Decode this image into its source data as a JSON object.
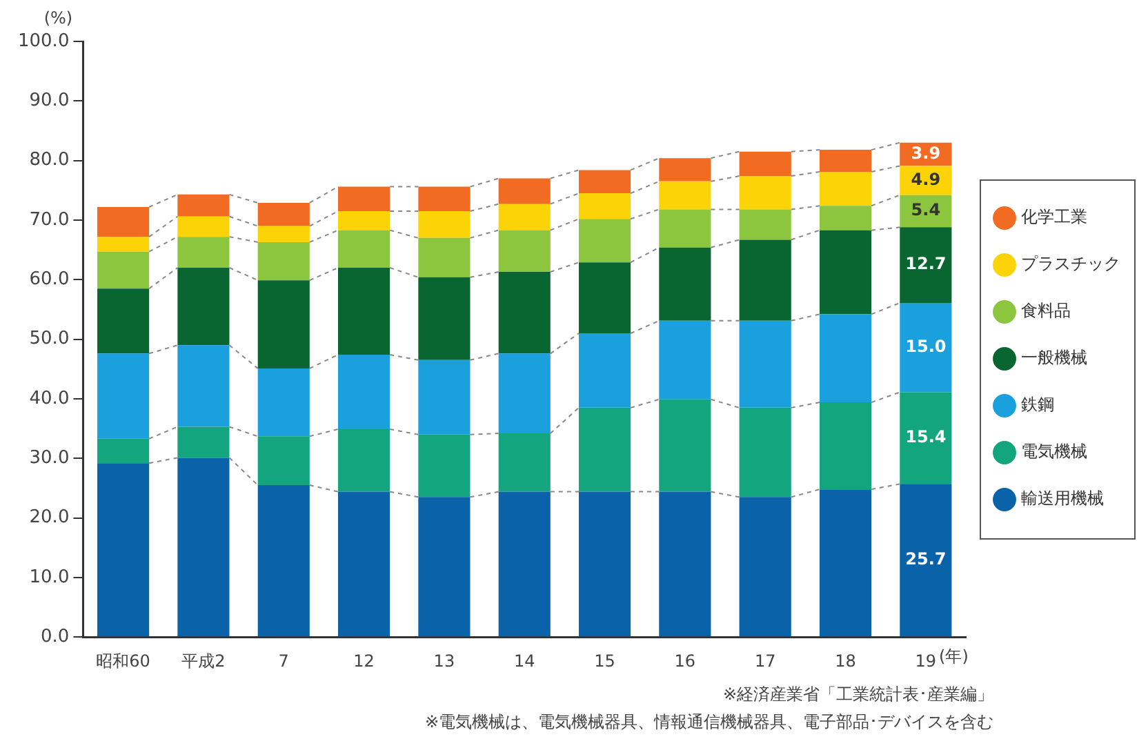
{
  "chart_data": {
    "type": "bar",
    "stacked": true,
    "ylabel": "(%)",
    "xlabel": "(年)",
    "categories": [
      "昭和60",
      "平成2",
      "7",
      "12",
      "13",
      "14",
      "15",
      "16",
      "17",
      "18",
      "19"
    ],
    "series": [
      {
        "name": "輸送用機械",
        "color": "#0a62a8",
        "values": [
          29.2,
          30.1,
          25.5,
          24.4,
          23.5,
          24.4,
          24.4,
          24.4,
          23.5,
          24.8,
          25.7
        ],
        "value_labels": [
          null,
          null,
          null,
          null,
          null,
          null,
          null,
          null,
          null,
          null,
          "25.7"
        ]
      },
      {
        "name": "電気機械",
        "color": "#13a57e",
        "values": [
          4.1,
          5.2,
          8.2,
          10.5,
          10.5,
          9.8,
          14.1,
          15.5,
          15.0,
          14.6,
          15.4
        ],
        "value_labels": [
          null,
          null,
          null,
          null,
          null,
          null,
          null,
          null,
          null,
          null,
          "15.4"
        ]
      },
      {
        "name": "鉄鋼",
        "color": "#1aa0dc",
        "values": [
          14.3,
          13.7,
          11.4,
          12.5,
          12.5,
          13.4,
          12.5,
          13.2,
          14.6,
          14.8,
          15.0
        ],
        "value_labels": [
          null,
          null,
          null,
          null,
          null,
          null,
          null,
          null,
          null,
          null,
          "15.0"
        ]
      },
      {
        "name": "一般機械",
        "color": "#0a6630",
        "values": [
          10.9,
          13.0,
          14.8,
          14.6,
          13.9,
          13.7,
          11.9,
          12.3,
          13.6,
          14.1,
          12.7
        ],
        "value_labels": [
          null,
          null,
          null,
          null,
          null,
          null,
          null,
          null,
          null,
          null,
          "12.7"
        ]
      },
      {
        "name": "食料品",
        "color": "#8cc63f",
        "values": [
          6.2,
          5.2,
          6.4,
          6.3,
          6.6,
          7.0,
          7.3,
          6.4,
          5.1,
          4.1,
          5.4
        ],
        "value_labels": [
          null,
          null,
          null,
          null,
          null,
          null,
          null,
          null,
          null,
          null,
          "5.4"
        ]
      },
      {
        "name": "プラスチック",
        "color": "#fcd307",
        "values": [
          2.5,
          3.4,
          2.7,
          3.2,
          4.5,
          4.4,
          4.3,
          4.7,
          5.6,
          5.7,
          4.9
        ],
        "value_labels": [
          null,
          null,
          null,
          null,
          null,
          null,
          null,
          null,
          null,
          null,
          "4.9"
        ]
      },
      {
        "name": "化学工業",
        "color": "#f26b22",
        "values": [
          5.0,
          3.7,
          3.9,
          4.1,
          4.1,
          4.3,
          3.9,
          3.9,
          4.1,
          3.7,
          3.9
        ],
        "value_labels": [
          null,
          null,
          null,
          null,
          null,
          null,
          null,
          null,
          null,
          null,
          "3.9"
        ]
      }
    ],
    "ylim": [
      0,
      100
    ],
    "yticks": [
      {
        "value": 0,
        "label": "0.0"
      },
      {
        "value": 10,
        "label": "10.0"
      },
      {
        "value": 20,
        "label": "20.0"
      },
      {
        "value": 30,
        "label": "30.0"
      },
      {
        "value": 40,
        "label": "40.0"
      },
      {
        "value": 50,
        "label": "50.0"
      },
      {
        "value": 60,
        "label": "60.0"
      },
      {
        "value": 70,
        "label": "70.0"
      },
      {
        "value": 80,
        "label": "80.0"
      },
      {
        "value": 90,
        "label": "90.0"
      },
      {
        "value": 100,
        "label": "100.0"
      }
    ],
    "grid": false,
    "legend": "right",
    "marker": "circle",
    "annotations": [
      "※経済産業省「工業統計表･産業編」",
      "※電気機械は、電気機械器具、情報通信機械器具、電子部品･デバイスを含む"
    ]
  }
}
